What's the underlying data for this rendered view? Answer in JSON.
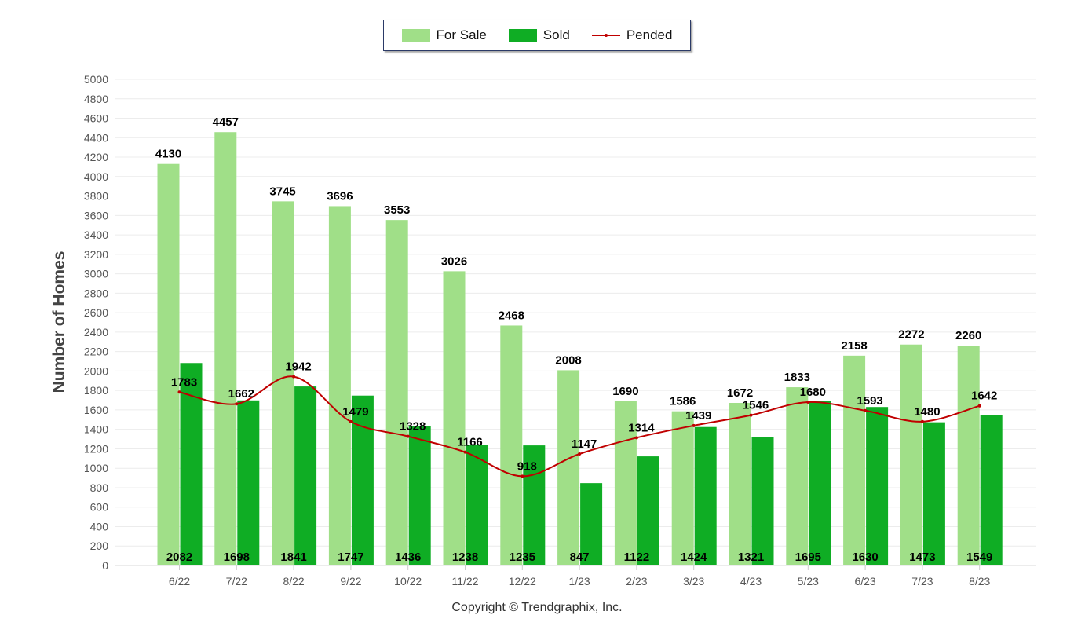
{
  "chart_data": {
    "type": "bar",
    "title": "",
    "xlabel": "",
    "ylabel": "Number of Homes",
    "ylim": [
      0,
      5000
    ],
    "y_ticks": [
      0,
      200,
      400,
      600,
      800,
      1000,
      1200,
      1400,
      1600,
      1800,
      2000,
      2200,
      2400,
      2600,
      2800,
      3000,
      3200,
      3400,
      3600,
      3800,
      4000,
      4200,
      4400,
      4600,
      4800,
      5000
    ],
    "grid": true,
    "legend_position": "top-center",
    "categories": [
      "6/22",
      "7/22",
      "8/22",
      "9/22",
      "10/22",
      "11/22",
      "12/22",
      "1/23",
      "2/23",
      "3/23",
      "4/23",
      "5/23",
      "6/23",
      "7/23",
      "8/23"
    ],
    "series": [
      {
        "name": "For Sale",
        "type": "bar",
        "color": "#a0df88",
        "values": [
          4130,
          4457,
          3745,
          3696,
          3553,
          3026,
          2468,
          2008,
          1690,
          1586,
          1672,
          1833,
          2158,
          2272,
          2260
        ]
      },
      {
        "name": "Sold",
        "type": "bar",
        "color": "#0fad24",
        "values": [
          2082,
          1698,
          1841,
          1747,
          1436,
          1238,
          1235,
          847,
          1122,
          1424,
          1321,
          1695,
          1630,
          1473,
          1549
        ]
      },
      {
        "name": "Pended",
        "type": "line",
        "color": "#c00000",
        "values": [
          1783,
          1662,
          1942,
          1479,
          1328,
          1166,
          918,
          1147,
          1314,
          1439,
          1546,
          1680,
          1593,
          1480,
          1642
        ]
      }
    ]
  },
  "legend": {
    "for_sale": "For Sale",
    "sold": "Sold",
    "pended": "Pended"
  },
  "copyright": "Copyright © Trendgraphix, Inc."
}
